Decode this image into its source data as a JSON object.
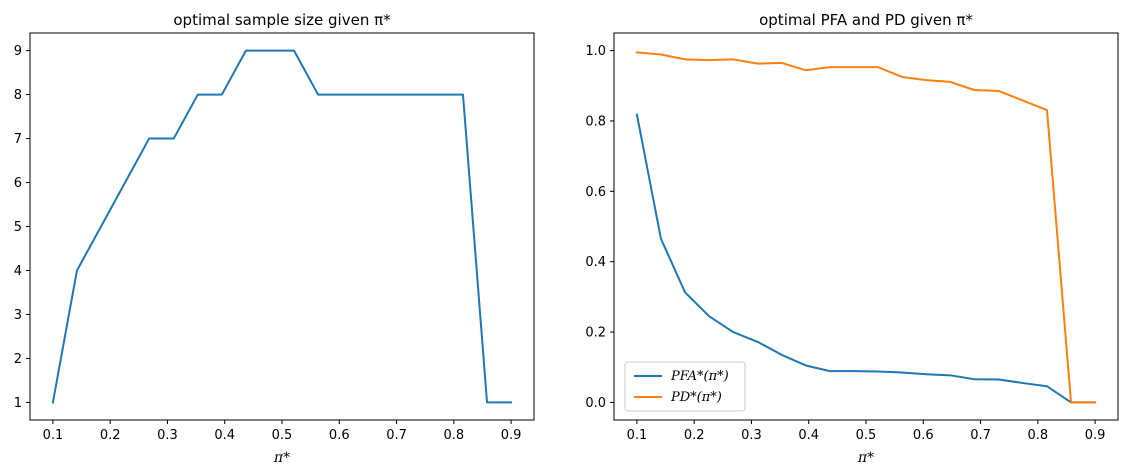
{
  "chart_data": [
    {
      "type": "line",
      "title": "optimal sample size given π*",
      "xlabel": "π*",
      "ylabel": "",
      "xlim": [
        0.06,
        0.94
      ],
      "ylim": [
        0.6,
        9.4
      ],
      "xticks": [
        "0.1",
        "0.2",
        "0.3",
        "0.4",
        "0.5",
        "0.6",
        "0.7",
        "0.8",
        "0.9"
      ],
      "yticks": [
        "1",
        "2",
        "3",
        "4",
        "5",
        "6",
        "7",
        "8",
        "9"
      ],
      "grid": false,
      "series": [
        {
          "color": "#1f77b4",
          "x": [
            0.1,
            0.142,
            0.184,
            0.226,
            0.268,
            0.311,
            0.353,
            0.395,
            0.437,
            0.479,
            0.521,
            0.563,
            0.605,
            0.647,
            0.689,
            0.732,
            0.774,
            0.816,
            0.858,
            0.9
          ],
          "y": [
            1,
            4,
            5,
            6,
            7,
            7,
            8,
            8,
            9,
            9,
            9,
            8,
            8,
            8,
            8,
            8,
            8,
            8,
            1,
            1
          ]
        }
      ]
    },
    {
      "type": "line",
      "title": "optimal PFA and PD given π*",
      "xlabel": "π*",
      "ylabel": "",
      "xlim": [
        0.06,
        0.94
      ],
      "ylim": [
        -0.05,
        1.05
      ],
      "xticks": [
        "0.1",
        "0.2",
        "0.3",
        "0.4",
        "0.5",
        "0.6",
        "0.7",
        "0.8",
        "0.9"
      ],
      "yticks": [
        "0.0",
        "0.2",
        "0.4",
        "0.6",
        "0.8",
        "1.0"
      ],
      "grid": false,
      "legend": "lower-left",
      "series": [
        {
          "name": "PFA*(π*)",
          "color": "#1f77b4",
          "x": [
            0.1,
            0.142,
            0.184,
            0.226,
            0.268,
            0.311,
            0.353,
            0.395,
            0.437,
            0.479,
            0.521,
            0.563,
            0.605,
            0.647,
            0.689,
            0.732,
            0.774,
            0.816,
            0.858,
            0.9
          ],
          "y": [
            0.818,
            0.465,
            0.313,
            0.245,
            0.2,
            0.172,
            0.135,
            0.105,
            0.089,
            0.089,
            0.088,
            0.085,
            0.08,
            0.077,
            0.066,
            0.065,
            0.055,
            0.046,
            0.0,
            0.0
          ]
        },
        {
          "name": "PD*(π*)",
          "color": "#ff7f0e",
          "x": [
            0.1,
            0.142,
            0.184,
            0.226,
            0.268,
            0.311,
            0.353,
            0.395,
            0.437,
            0.479,
            0.521,
            0.563,
            0.605,
            0.647,
            0.689,
            0.732,
            0.774,
            0.816,
            0.858,
            0.9
          ],
          "y": [
            0.995,
            0.989,
            0.975,
            0.973,
            0.975,
            0.963,
            0.965,
            0.944,
            0.953,
            0.953,
            0.953,
            0.925,
            0.916,
            0.911,
            0.888,
            0.885,
            0.858,
            0.831,
            0.0,
            0.0
          ]
        }
      ]
    }
  ]
}
